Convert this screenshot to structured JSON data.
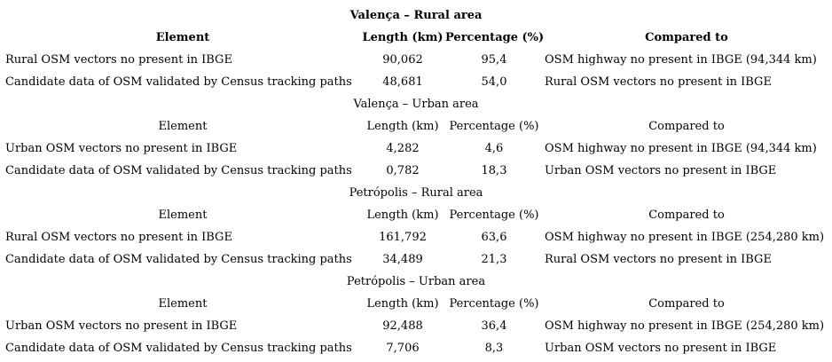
{
  "sections": [
    {
      "title": "Valença – Rural area",
      "headers": {
        "element": "Element",
        "length": "Length (km)",
        "percentage": "Percentage (%)",
        "compared": "Compared to"
      },
      "rows": [
        {
          "element": "Rural OSM vectors no present in IBGE",
          "length": "90,062",
          "percentage": "95,4",
          "compared": "OSM highway no present in IBGE (94,344 km)"
        },
        {
          "element": "Candidate data of OSM validated by Census tracking paths",
          "length": "48,681",
          "percentage": "54,0",
          "compared": "Rural OSM vectors no present in IBGE"
        }
      ]
    },
    {
      "title": "Valença – Urban area",
      "headers": {
        "element": "Element",
        "length": "Length (km)",
        "percentage": "Percentage (%)",
        "compared": "Compared to"
      },
      "rows": [
        {
          "element": "Urban OSM vectors no present in IBGE",
          "length": "4,282",
          "percentage": "4,6",
          "compared": "OSM highway no present in IBGE (94,344 km)"
        },
        {
          "element": "Candidate data of OSM validated by Census tracking paths",
          "length": "0,782",
          "percentage": "18,3",
          "compared": "Urban OSM vectors no present in IBGE"
        }
      ]
    },
    {
      "title": "Petrópolis – Rural area",
      "headers": {
        "element": "Element",
        "length": "Length (km)",
        "percentage": "Percentage (%)",
        "compared": "Compared to"
      },
      "rows": [
        {
          "element": "Rural OSM vectors no present in IBGE",
          "length": "161,792",
          "percentage": "63,6",
          "compared": "OSM highway no present in IBGE (254,280 km)"
        },
        {
          "element": "Candidate data of OSM validated by Census tracking paths",
          "length": "34,489",
          "percentage": "21,3",
          "compared": "Rural OSM vectors no present in IBGE"
        }
      ]
    },
    {
      "title": "Petrópolis – Urban area",
      "headers": {
        "element": "Element",
        "length": "Length (km)",
        "percentage": "Percentage (%)",
        "compared": "Compared to"
      },
      "rows": [
        {
          "element": "Urban OSM vectors no present in IBGE",
          "length": "92,488",
          "percentage": "36,4",
          "compared": "OSM highway no present in IBGE (254,280 km)"
        },
        {
          "element": "Candidate data of OSM validated by Census tracking paths",
          "length": "7,706",
          "percentage": "8,3",
          "compared": "Urban OSM vectors no present in IBGE"
        }
      ]
    }
  ]
}
